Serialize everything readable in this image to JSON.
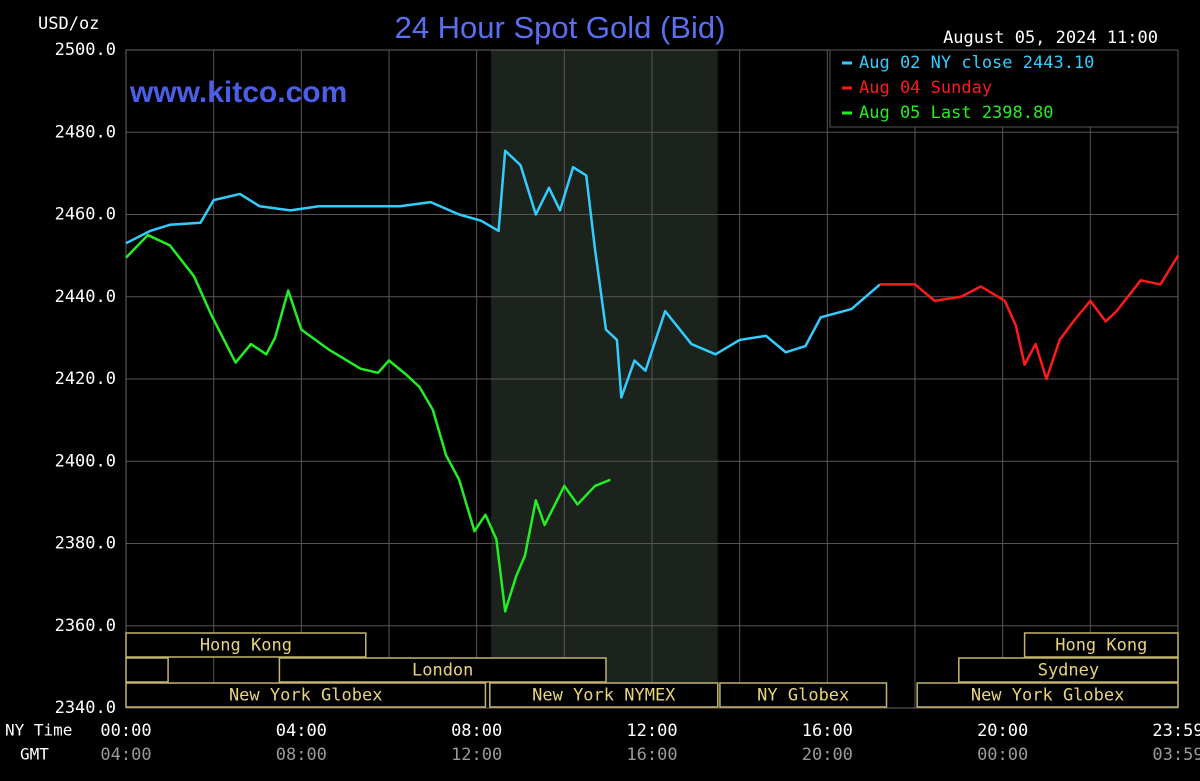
{
  "chart_data": {
    "type": "line",
    "title": "24 Hour Spot Gold (Bid)",
    "ylabel": "USD/oz",
    "date": "August 05, 2024 11:00",
    "watermark": "www.kitco.com",
    "x_row_labels": [
      "NY Time",
      "GMT"
    ],
    "xlim": [
      0,
      24
    ],
    "xticks": [
      {
        "value": 0,
        "label": "00:00"
      },
      {
        "value": 4,
        "label": "04:00"
      },
      {
        "value": 8,
        "label": "08:00"
      },
      {
        "value": 12,
        "label": "12:00"
      },
      {
        "value": 16,
        "label": "16:00"
      },
      {
        "value": 20,
        "label": "20:00"
      },
      {
        "value": 24,
        "label": "23:59"
      }
    ],
    "x_secondary_labels": [
      "04:00",
      "08:00",
      "12:00",
      "16:00",
      "20:00",
      "00:00",
      "03:59"
    ],
    "minor_xticks": [
      2,
      6,
      10,
      14,
      18,
      22
    ],
    "ylim": [
      2340,
      2500
    ],
    "yticks": [
      {
        "value": 2340,
        "label": "2340.0"
      },
      {
        "value": 2360,
        "label": "2360.0"
      },
      {
        "value": 2380,
        "label": "2380.0"
      },
      {
        "value": 2400,
        "label": "2400.0"
      },
      {
        "value": 2420,
        "label": "2420.0"
      },
      {
        "value": 2440,
        "label": "2440.0"
      },
      {
        "value": 2460,
        "label": "2460.0"
      },
      {
        "value": 2480,
        "label": "2480.0"
      },
      {
        "value": 2500,
        "label": "2500.0"
      }
    ],
    "grid": true,
    "legend": "top-right",
    "highlight": [
      8.33,
      13.5
    ],
    "session_rows": [
      [
        {
          "label": "Hong Kong",
          "start": 0,
          "end": 5.47
        },
        {
          "label": "Hong Kong",
          "start": 20.5,
          "end": 24
        }
      ],
      [
        {
          "label": null,
          "start": 0,
          "end": 0.96
        },
        {
          "label": "London",
          "start": 3.5,
          "end": 10.95
        },
        {
          "label": "Sydney",
          "start": 19.0,
          "end": 24
        }
      ],
      [
        {
          "label": "New York Globex",
          "start": 0,
          "end": 8.2
        },
        {
          "label": "New York NYMEX",
          "start": 8.3,
          "end": 13.5
        },
        {
          "label": "NY Globex",
          "start": 13.55,
          "end": 17.35
        },
        {
          "label": "New York Globex",
          "start": 18.05,
          "end": 24
        }
      ]
    ],
    "series": [
      {
        "name": "Aug 02 NY close 2443.10",
        "color": "#33ccff",
        "x": [
          0,
          0.55,
          1.0,
          1.7,
          2.0,
          2.6,
          3.05,
          3.75,
          4.4,
          5.35,
          6.25,
          6.95,
          7.6,
          8.1,
          8.5,
          8.65,
          9.0,
          9.35,
          9.65,
          9.9,
          10.2,
          10.5,
          10.7,
          10.95,
          11.2,
          11.3,
          11.6,
          11.85,
          12.3,
          12.9,
          13.45,
          14.0,
          14.6,
          15.05,
          15.5,
          15.85,
          16.55,
          17.2
        ],
        "values": [
          2453,
          2456,
          2457.5,
          2458,
          2463.5,
          2465,
          2462,
          2461,
          2462,
          2462,
          2462,
          2463,
          2460,
          2458.5,
          2456,
          2475.5,
          2472,
          2460,
          2466.5,
          2461,
          2471.5,
          2469.5,
          2451.5,
          2432,
          2429.5,
          2415.5,
          2424.5,
          2422,
          2436.5,
          2428.5,
          2426,
          2429.5,
          2430.5,
          2426.5,
          2428,
          2435,
          2437,
          2443
        ]
      },
      {
        "name": "Aug 04 Sunday",
        "color": "#ff1a1a",
        "x": [
          17.2,
          18.0,
          18.45,
          19.05,
          19.5,
          20.05,
          20.3,
          20.5,
          20.75,
          21.0,
          21.3,
          21.65,
          22.0,
          22.35,
          22.6,
          23.15,
          23.6,
          24.0
        ],
        "values": [
          2443,
          2443,
          2439,
          2440,
          2442.5,
          2439,
          2433,
          2423.5,
          2428.5,
          2420,
          2429.5,
          2434.5,
          2439,
          2434,
          2436.5,
          2444,
          2443,
          2450
        ]
      },
      {
        "name": "Aug 05 Last 2398.80",
        "color": "#22ee22",
        "x": [
          0,
          0.5,
          1.0,
          1.55,
          1.95,
          2.5,
          2.85,
          3.2,
          3.4,
          3.7,
          4.0,
          4.65,
          5.35,
          5.75,
          6.0,
          6.4,
          6.7,
          7.0,
          7.3,
          7.6,
          7.95,
          8.2,
          8.45,
          8.65,
          8.9,
          9.1,
          9.35,
          9.55,
          10.0,
          10.3,
          10.7,
          11.05
        ],
        "values": [
          2449.5,
          2455,
          2452.5,
          2445,
          2435.5,
          2424,
          2428.5,
          2426,
          2430,
          2441.5,
          2432,
          2427,
          2422.5,
          2421.5,
          2424.5,
          2421,
          2418,
          2412.5,
          2401.5,
          2395.5,
          2383,
          2387,
          2381,
          2363.5,
          2372,
          2377,
          2390.5,
          2384.5,
          2394,
          2389.5,
          2394,
          2395.5
        ]
      }
    ]
  }
}
